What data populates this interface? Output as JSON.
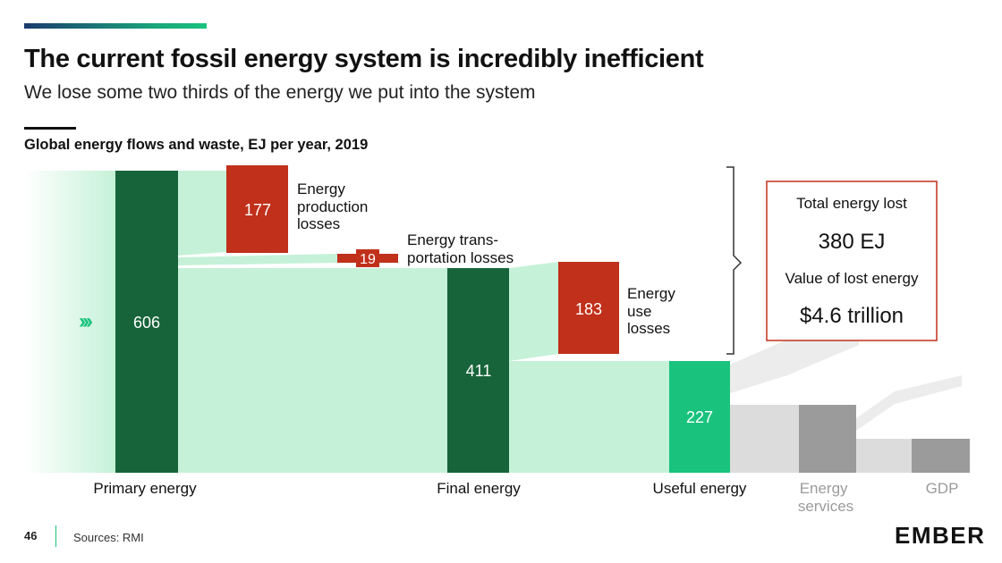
{
  "header": {
    "title": "The current fossil energy system is incredibly inefficient",
    "subtitle": "We lose some two thirds of the energy we put into the system"
  },
  "chart_data": {
    "type": "sankey",
    "title": "Global energy flows and waste, EJ per year, 2019",
    "unit": "EJ",
    "stages": [
      {
        "id": "primary",
        "label": "Primary energy",
        "value": 606
      },
      {
        "id": "final",
        "label": "Final energy",
        "value": 411
      },
      {
        "id": "useful",
        "label": "Useful energy",
        "value": 227
      },
      {
        "id": "services",
        "label": "Energy services",
        "label_lines": [
          "Energy",
          "services"
        ]
      },
      {
        "id": "gdp",
        "label": "GDP"
      }
    ],
    "losses": [
      {
        "id": "production",
        "value": 177,
        "label_lines": [
          "Energy",
          "production",
          "losses"
        ]
      },
      {
        "id": "transport",
        "value": 19,
        "label_lines": [
          "Energy trans-",
          "portation losses"
        ]
      },
      {
        "id": "use",
        "value": 183,
        "label_lines": [
          "Energy",
          "use",
          "losses"
        ]
      }
    ],
    "colors": {
      "stage_dark": "#17643a",
      "stage_useful": "#19c37d",
      "loss": "#c0301a",
      "flow": "#c5f1d8",
      "grey_light": "#dcdcdc",
      "grey_dark": "#9b9b9b"
    }
  },
  "summary": {
    "total_lost_label": "Total energy lost",
    "total_lost_value": "380 EJ",
    "value_lost_label": "Value of lost energy",
    "value_lost_value": "$4.6 trillion",
    "border_color": "#c0301a"
  },
  "footer": {
    "page_number": "46",
    "sources": "Sources: RMI",
    "logo": "EMBER"
  }
}
